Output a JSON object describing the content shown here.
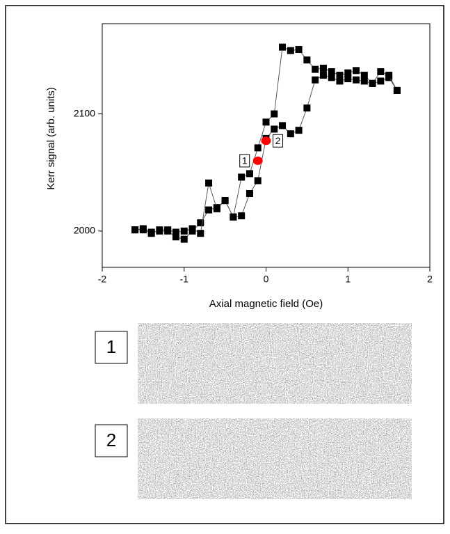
{
  "chart_data": {
    "type": "scatter-line",
    "x_label": "Axial magnetic field (Oe)",
    "y_label": "Kerr signal (arb. units)",
    "xlim": [
      -2,
      2
    ],
    "xticks": [
      -2,
      -1,
      0,
      1,
      2
    ],
    "ylim": [
      1969,
      2177
    ],
    "yticks": [
      2000,
      2100
    ],
    "line_color": "#555555",
    "series": [
      {
        "color": "#000000",
        "x": [
          -1.6,
          -1.5,
          -1.4,
          -1.3,
          -1.2,
          -1.1,
          -1.0,
          -0.9,
          -0.8,
          -0.7,
          -0.6,
          -0.5,
          -0.4,
          -0.3,
          -0.2,
          -0.1,
          0.0,
          0.1,
          0.2,
          0.3,
          0.4,
          0.5,
          0.6,
          0.7,
          0.8,
          0.9,
          1.0,
          1.1,
          1.2,
          1.3,
          1.4,
          1.5,
          1.6
        ],
        "values": [
          2001,
          2002,
          1999,
          2000,
          2000,
          1995,
          1993,
          2000,
          2007,
          2018,
          2020,
          2026,
          2012,
          2013,
          2032,
          2043,
          2079,
          2087,
          2090,
          2083,
          2086,
          2105,
          2129,
          2133,
          2131,
          2128,
          2130,
          2129,
          2128,
          2126,
          2128,
          2131,
          2120
        ]
      },
      {
        "color": "#000000",
        "x": [
          1.6,
          1.5,
          1.4,
          1.3,
          1.2,
          1.1,
          1.0,
          0.9,
          0.8,
          0.7,
          0.6,
          0.5,
          0.4,
          0.3,
          0.2,
          0.1,
          0.0,
          -0.1,
          -0.2,
          -0.3,
          -0.4,
          -0.5,
          -0.6,
          -0.7,
          -0.8,
          -0.9,
          -1.0,
          -1.1,
          -1.2,
          -1.3,
          -1.4,
          -1.5,
          -1.6
        ],
        "values": [
          2120,
          2133,
          2136,
          2126,
          2133,
          2137,
          2135,
          2133,
          2136,
          2139,
          2138,
          2146,
          2155,
          2154,
          2157,
          2100,
          2093,
          2071,
          2049,
          2046,
          2012,
          2026,
          2019,
          2041,
          1998,
          2002,
          2000,
          1999,
          2001,
          2001,
          1998,
          2001,
          2001
        ]
      }
    ],
    "markers": [
      {
        "label": "1",
        "x": -0.1,
        "y": 2060,
        "color": "#ff0000",
        "side": "left"
      },
      {
        "label": "2",
        "x": 0.0,
        "y": 2077,
        "color": "#ff0000",
        "side": "right"
      }
    ]
  },
  "images": [
    {
      "label": "1"
    },
    {
      "label": "2"
    }
  ]
}
